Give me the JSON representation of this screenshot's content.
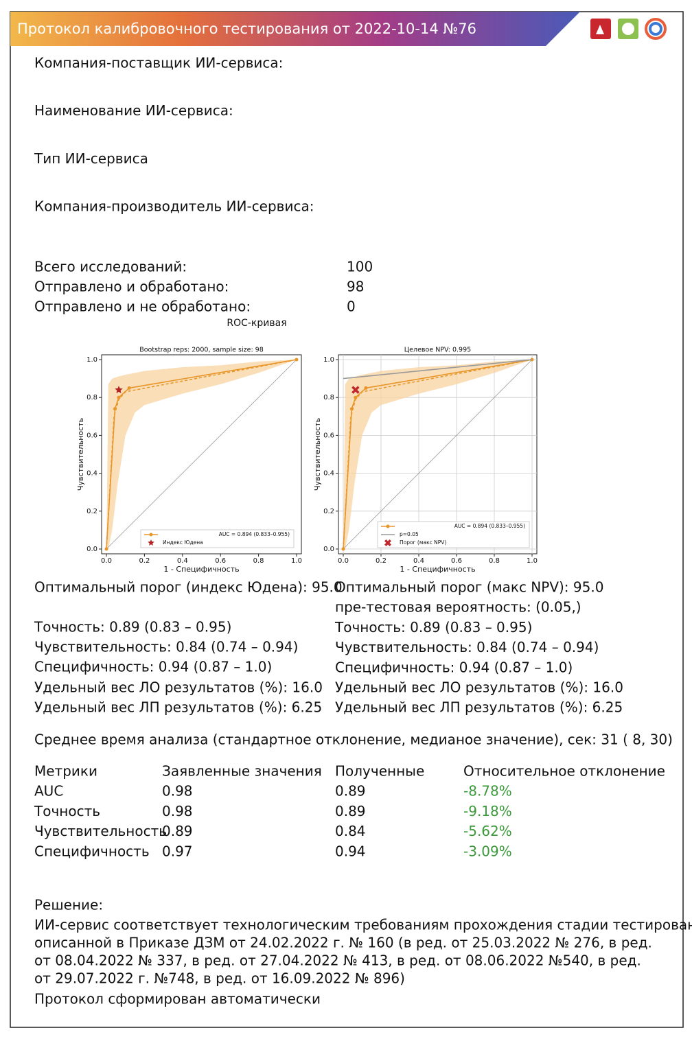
{
  "header": {
    "title": "Протокол калибровочного тестирования от 2022-10-14 №76"
  },
  "fields": [
    "Компания-поставщик ИИ-сервиса:",
    "Наименование ИИ-сервиса:",
    "Тип ИИ-сервиса",
    "Компания-производитель ИИ-сервиса:"
  ],
  "counts": [
    {
      "label": "Всего исследований:",
      "value": 100
    },
    {
      "label": "Отправлено и обработано:",
      "value": 98
    },
    {
      "label": "Отправлено и не обработано:",
      "value": 0
    }
  ],
  "figure_title": "ROC-кривая",
  "chart_data": [
    {
      "type": "line",
      "title": "Bootstrap reps: 2000, sample size: 98",
      "xlabel": "1 - Специфичность",
      "ylabel": "Чувствительность",
      "xlim": [
        0,
        1
      ],
      "ylim": [
        0,
        1
      ],
      "xticks": [
        {
          "value": 0,
          "label": "0.0"
        },
        0.2,
        0.4,
        0.6,
        0.8,
        {
          "value": 1,
          "label": "1.0"
        }
      ],
      "yticks": [
        {
          "value": 0,
          "label": "0.0"
        },
        0.2,
        0.4,
        0.6,
        0.8,
        {
          "value": 1,
          "label": "1.0"
        }
      ],
      "grid": false,
      "legend": "lower right",
      "band": {
        "color": "#f8d3a0",
        "x": [
          0,
          0.01,
          0.03,
          0.06,
          0.1,
          0.15,
          0.2,
          0.4,
          0.6,
          0.8,
          1
        ],
        "lower": [
          0,
          0,
          0.1,
          0.35,
          0.6,
          0.72,
          0.76,
          0.82,
          0.87,
          0.93,
          1
        ],
        "upper": [
          0,
          0.87,
          0.9,
          0.91,
          0.92,
          0.93,
          0.94,
          0.96,
          0.97,
          0.99,
          1
        ]
      },
      "mean_curve": {
        "color": "#e8962a",
        "x": [
          0,
          0.04,
          0.065,
          0.1,
          1
        ],
        "values": [
          0,
          0.7,
          0.79,
          0.83,
          1
        ]
      },
      "series": [
        {
          "name": "AUC = 0.894 (0.833–0.955)",
          "color": "#e8962a",
          "x": [
            0,
            0.045,
            0.065,
            0.12,
            1
          ],
          "values": [
            0,
            0.74,
            0.8,
            0.85,
            1
          ]
        }
      ],
      "markers": [
        {
          "name": "Индекс Юдена",
          "color": "#b22222",
          "shape": "star",
          "x": 0.065,
          "y": 0.84
        }
      ]
    },
    {
      "type": "line",
      "title": "Целевое NPV: 0.995",
      "xlabel": "1 - Специфичность",
      "ylabel": "Чувствительность",
      "xlim": [
        0,
        1
      ],
      "ylim": [
        0,
        1
      ],
      "xticks": [
        {
          "value": 0,
          "label": "0.0"
        },
        0.2,
        0.4,
        0.6,
        0.8,
        {
          "value": 1,
          "label": "1.0"
        }
      ],
      "yticks": [
        {
          "value": 0,
          "label": "0.0"
        },
        0.2,
        0.4,
        0.6,
        0.8,
        {
          "value": 1,
          "label": "1.0"
        }
      ],
      "grid": true,
      "legend": "lower right",
      "band": {
        "color": "#f8d3a0",
        "x": [
          0,
          0.01,
          0.03,
          0.06,
          0.1,
          0.15,
          0.2,
          0.4,
          0.6,
          0.8,
          1
        ],
        "lower": [
          0,
          0,
          0.1,
          0.35,
          0.6,
          0.72,
          0.76,
          0.82,
          0.87,
          0.93,
          1
        ],
        "upper": [
          0,
          0.87,
          0.9,
          0.91,
          0.92,
          0.93,
          0.94,
          0.96,
          0.97,
          0.99,
          1
        ]
      },
      "mean_curve": {
        "color": "#e8962a",
        "x": [
          0,
          0.04,
          0.065,
          0.1,
          1
        ],
        "values": [
          0,
          0.7,
          0.79,
          0.83,
          1
        ]
      },
      "series": [
        {
          "name": "AUC = 0.894 (0.833–0.955)",
          "color": "#e8962a",
          "x": [
            0,
            0.045,
            0.065,
            0.12,
            1
          ],
          "values": [
            0,
            0.74,
            0.8,
            0.85,
            1
          ]
        },
        {
          "name": "p=0.05",
          "color": "#999999",
          "x": [
            0,
            1
          ],
          "values": [
            0.9,
            1
          ]
        }
      ],
      "markers": [
        {
          "name": "Порог (макс NPV)",
          "color": "#c0282d",
          "shape": "x",
          "x": 0.065,
          "y": 0.84
        }
      ]
    }
  ],
  "results": {
    "left": [
      "Оптимальный порог (индекс Юдена): 95.0",
      "Точность: 0.89 (0.83 – 0.95)",
      "Чувствительность: 0.84 (0.74 – 0.94)",
      "Специфичность: 0.94 (0.87 – 1.0)",
      "Удельный вес ЛО результатов (%): 16.0",
      "Удельный вес ЛП результатов (%): 6.25"
    ],
    "right": [
      "Оптимальный порог (макс NPV): 95.0",
      "пре-тестовая вероятность: (0.05,)",
      "Точность: 0.89 (0.83 – 0.95)",
      "Чувствительность: 0.84 (0.74 – 0.94)",
      "Специфичность: 0.94 (0.87 – 1.0)",
      "Удельный вес ЛО результатов (%): 16.0",
      "Удельный вес ЛП результатов (%): 6.25"
    ]
  },
  "timing": "Среднее время анализа (стандартное отклонение, медианое значение), сек: 31 ( 8, 30)",
  "table": {
    "header": [
      "Метрики",
      "Заявленные значения",
      "Полученные",
      "Относительное отклонение"
    ],
    "rows": [
      [
        "AUC",
        0.98,
        0.89,
        "-8.78%"
      ],
      [
        "Точность",
        0.98,
        0.89,
        "-9.18%"
      ],
      [
        "Чувствительность",
        0.89,
        0.84,
        "-5.62%"
      ],
      [
        "Специфичность",
        0.97,
        0.94,
        "-3.09%"
      ]
    ]
  },
  "decision": {
    "title": "Решение:",
    "lines": [
      "ИИ-сервис соответствует технологическим требованиям прохождения стадии тестирования",
      "описанной в Приказе ДЗМ от 24.02.2022 г. № 160 (в ред. от 25.03.2022 № 276, в ред.",
      "от 08.04.2022 № 337, в ред. от 27.04.2022 № 413, в ред. от 08.06.2022 №540, в ред.",
      "от 29.07.2022 г. №748, в ред. от 16.09.2022 № 896)"
    ],
    "footer": "Протокол сформирован автоматически"
  }
}
